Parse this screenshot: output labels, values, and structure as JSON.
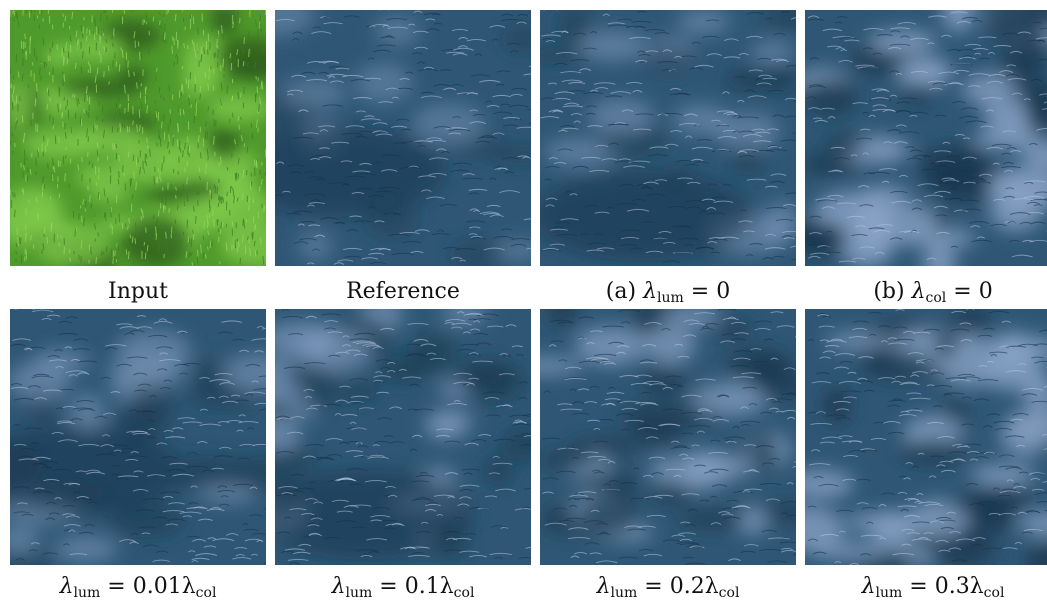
{
  "figure": {
    "panels": [
      {
        "id": "input",
        "caption": "Input",
        "kind": "grass",
        "blob": 0.0
      },
      {
        "id": "reference",
        "caption": "Reference",
        "kind": "water",
        "blob": 0.1
      },
      {
        "id": "a",
        "prefix": "(a) ",
        "lhs": "λ",
        "lhs_sub": "lum",
        "rhs": "0",
        "rhs_sub": "",
        "kind": "water",
        "blob": 0.25
      },
      {
        "id": "b",
        "prefix": "(b) ",
        "lhs": "λ",
        "lhs_sub": "col",
        "rhs": "0",
        "rhs_sub": "",
        "kind": "water",
        "blob": 0.85
      },
      {
        "id": "lum001",
        "prefix": "",
        "lhs": "λ",
        "lhs_sub": "lum",
        "rhs": "0.01λ",
        "rhs_sub": "col",
        "kind": "water",
        "blob": 0.3
      },
      {
        "id": "lum01",
        "prefix": "",
        "lhs": "λ",
        "lhs_sub": "lum",
        "rhs": "0.1λ",
        "rhs_sub": "col",
        "kind": "water",
        "blob": 0.45
      },
      {
        "id": "lum02",
        "prefix": "",
        "lhs": "λ",
        "lhs_sub": "lum",
        "rhs": "0.2λ",
        "rhs_sub": "col",
        "kind": "water",
        "blob": 0.65
      },
      {
        "id": "lum03",
        "prefix": "",
        "lhs": "λ",
        "lhs_sub": "lum",
        "rhs": "0.3λ",
        "rhs_sub": "col",
        "kind": "water",
        "blob": 0.75
      }
    ],
    "colors": {
      "grass_light": "#7ec84a",
      "grass_mid": "#4f9a2c",
      "grass_dark": "#2b5a1c",
      "water_deep": "#17374e",
      "water_mid": "#2f5775",
      "water_light": "#8aa3c7"
    }
  }
}
